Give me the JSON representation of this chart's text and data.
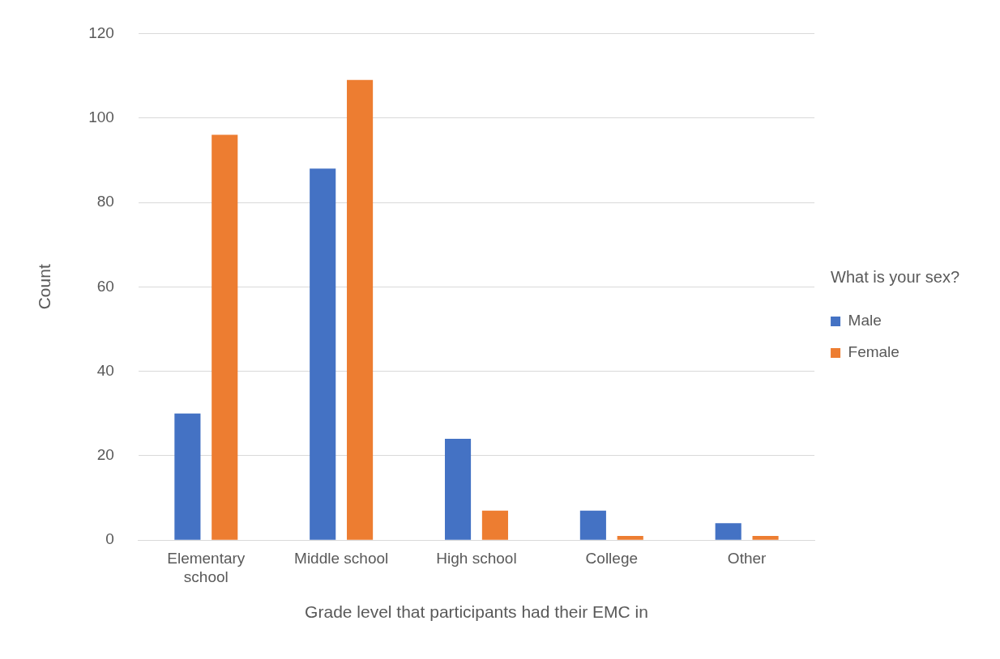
{
  "chart_data": {
    "type": "bar",
    "categories": [
      "Elementary school",
      "Middle school",
      "High school",
      "College",
      "Other"
    ],
    "series": [
      {
        "name": "Male",
        "color": "#4472c4",
        "values": [
          30,
          88,
          24,
          7,
          4
        ]
      },
      {
        "name": "Female",
        "color": "#ed7d31",
        "values": [
          96,
          109,
          7,
          1,
          1
        ]
      }
    ],
    "xlabel": "Grade level that participants had their EMC in",
    "ylabel": "Count",
    "legend_title": "What is your sex?",
    "ylim": [
      0,
      120
    ],
    "yticks": [
      0,
      20,
      40,
      60,
      80,
      100,
      120
    ],
    "grid": "y",
    "legend": "right"
  }
}
